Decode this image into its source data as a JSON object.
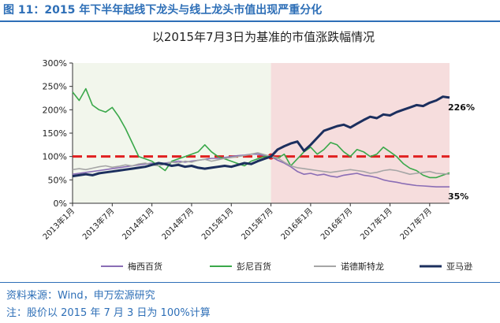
{
  "figure": {
    "title": "图 11：2015 年下半年起线下龙头与线上龙头市值出现严重分化",
    "source": "资料来源：Wind，申万宏源研究",
    "note": "注：股价以 2015 年 7 月 3 日为 100%计算"
  },
  "chart_data": {
    "type": "line",
    "title": "以2015年7月3日为基准的市值涨跌幅情况",
    "xlabel": "",
    "ylabel": "",
    "x_ticks": [
      "2013年1月",
      "2013年7月",
      "2014年1月",
      "2014年7月",
      "2015年1月",
      "2015年7月",
      "2016年1月",
      "2016年7月",
      "2017年1月",
      "2017年7月"
    ],
    "y_ticks": [
      "0%",
      "50%",
      "100%",
      "150%",
      "200%",
      "250%",
      "300%"
    ],
    "ylim": [
      0,
      3.0
    ],
    "xlim": [
      0,
      57
    ],
    "x_unit": "months since 2013-01",
    "grid": false,
    "legend_position": "bottom",
    "base_date_index": 30,
    "base_value": 1.0,
    "shaded_regions": [
      {
        "from": 0,
        "to": 30,
        "color": "#f2f6ec"
      },
      {
        "from": 30,
        "to": 57,
        "color": "#f6dddd"
      }
    ],
    "reference_line": {
      "value": 1.0,
      "color": "#e02020",
      "style": "dashed"
    },
    "annotations": [
      {
        "text": "226%",
        "x": 57,
        "y": 2.26
      },
      {
        "text": "35%",
        "x": 57,
        "y": 0.35
      }
    ],
    "series": [
      {
        "name": "梅西百货",
        "color": "#8a6db5",
        "x": [
          0,
          1,
          2,
          3,
          4,
          5,
          6,
          7,
          8,
          9,
          10,
          11,
          12,
          13,
          14,
          15,
          16,
          17,
          18,
          19,
          20,
          21,
          22,
          23,
          24,
          25,
          26,
          27,
          28,
          29,
          30,
          31,
          32,
          33,
          34,
          35,
          36,
          37,
          38,
          39,
          40,
          41,
          42,
          43,
          44,
          45,
          46,
          47,
          48,
          49,
          50,
          51,
          52,
          53,
          54,
          55,
          56,
          57
        ],
        "values": [
          0.62,
          0.64,
          0.66,
          0.68,
          0.7,
          0.72,
          0.74,
          0.76,
          0.78,
          0.8,
          0.82,
          0.84,
          0.86,
          0.84,
          0.86,
          0.88,
          0.9,
          0.88,
          0.9,
          0.92,
          0.94,
          0.96,
          0.96,
          0.98,
          1.0,
          1.02,
          1.03,
          1.05,
          1.05,
          1.02,
          1.0,
          0.92,
          0.86,
          0.78,
          0.68,
          0.62,
          0.64,
          0.6,
          0.62,
          0.58,
          0.56,
          0.6,
          0.62,
          0.64,
          0.6,
          0.58,
          0.55,
          0.5,
          0.47,
          0.45,
          0.42,
          0.4,
          0.38,
          0.37,
          0.36,
          0.35,
          0.35,
          0.35
        ]
      },
      {
        "name": "彭尼百货",
        "color": "#3aa84a",
        "x": [
          0,
          1,
          2,
          3,
          4,
          5,
          6,
          7,
          8,
          9,
          10,
          11,
          12,
          13,
          14,
          15,
          16,
          17,
          18,
          19,
          20,
          21,
          22,
          23,
          24,
          25,
          26,
          27,
          28,
          29,
          30,
          31,
          32,
          33,
          34,
          35,
          36,
          37,
          38,
          39,
          40,
          41,
          42,
          43,
          44,
          45,
          46,
          47,
          48,
          49,
          50,
          51,
          52,
          53,
          54,
          55,
          56,
          57
        ],
        "values": [
          2.38,
          2.2,
          2.45,
          2.1,
          2.0,
          1.95,
          2.05,
          1.85,
          1.6,
          1.3,
          1.0,
          0.95,
          0.9,
          0.8,
          0.7,
          0.9,
          0.95,
          1.0,
          1.05,
          1.1,
          1.25,
          1.1,
          1.0,
          0.95,
          0.9,
          0.85,
          0.8,
          0.9,
          0.95,
          1.0,
          1.0,
          0.96,
          1.05,
          0.8,
          0.95,
          1.1,
          1.2,
          1.05,
          1.15,
          1.3,
          1.25,
          1.1,
          1.0,
          1.15,
          1.1,
          1.0,
          1.05,
          1.2,
          1.1,
          1.0,
          0.85,
          0.75,
          0.7,
          0.6,
          0.55,
          0.55,
          0.6,
          0.65
        ]
      },
      {
        "name": "诺德斯特龙",
        "color": "#a6a6a6",
        "x": [
          0,
          1,
          2,
          3,
          4,
          5,
          6,
          7,
          8,
          9,
          10,
          11,
          12,
          13,
          14,
          15,
          16,
          17,
          18,
          19,
          20,
          21,
          22,
          23,
          24,
          25,
          26,
          27,
          28,
          29,
          30,
          31,
          32,
          33,
          34,
          35,
          36,
          37,
          38,
          39,
          40,
          41,
          42,
          43,
          44,
          45,
          46,
          47,
          48,
          49,
          50,
          51,
          52,
          53,
          54,
          55,
          56,
          57
        ],
        "values": [
          0.72,
          0.74,
          0.72,
          0.75,
          0.78,
          0.8,
          0.77,
          0.79,
          0.82,
          0.8,
          0.84,
          0.86,
          0.82,
          0.8,
          0.84,
          0.88,
          0.86,
          0.9,
          0.88,
          0.92,
          0.94,
          0.9,
          0.93,
          0.96,
          0.98,
          1.0,
          1.02,
          1.05,
          1.08,
          1.04,
          1.0,
          0.97,
          0.88,
          0.8,
          0.76,
          0.74,
          0.72,
          0.7,
          0.68,
          0.66,
          0.68,
          0.7,
          0.72,
          0.7,
          0.68,
          0.64,
          0.66,
          0.7,
          0.72,
          0.7,
          0.66,
          0.62,
          0.64,
          0.66,
          0.68,
          0.64,
          0.63,
          0.62
        ]
      },
      {
        "name": "亚马逊",
        "color": "#1c2f5e",
        "x": [
          0,
          1,
          2,
          3,
          4,
          5,
          6,
          7,
          8,
          9,
          10,
          11,
          12,
          13,
          14,
          15,
          16,
          17,
          18,
          19,
          20,
          21,
          22,
          23,
          24,
          25,
          26,
          27,
          28,
          29,
          30,
          31,
          32,
          33,
          34,
          35,
          36,
          37,
          38,
          39,
          40,
          41,
          42,
          43,
          44,
          45,
          46,
          47,
          48,
          49,
          50,
          51,
          52,
          53,
          54,
          55,
          56,
          57
        ],
        "values": [
          0.58,
          0.6,
          0.62,
          0.6,
          0.64,
          0.66,
          0.68,
          0.7,
          0.72,
          0.74,
          0.76,
          0.78,
          0.82,
          0.86,
          0.84,
          0.8,
          0.82,
          0.78,
          0.8,
          0.76,
          0.74,
          0.76,
          0.78,
          0.8,
          0.78,
          0.82,
          0.86,
          0.84,
          0.9,
          0.95,
          1.0,
          1.15,
          1.22,
          1.28,
          1.32,
          1.12,
          1.25,
          1.4,
          1.55,
          1.6,
          1.65,
          1.68,
          1.62,
          1.7,
          1.78,
          1.85,
          1.82,
          1.9,
          1.88,
          1.95,
          2.0,
          2.05,
          2.1,
          2.08,
          2.15,
          2.2,
          2.28,
          2.26
        ]
      }
    ]
  }
}
